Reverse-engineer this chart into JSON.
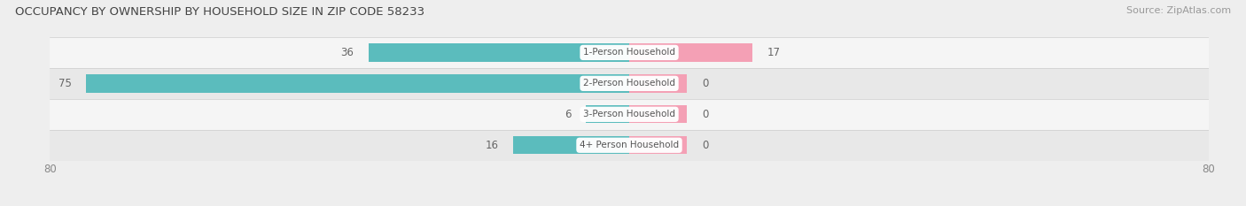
{
  "title": "OCCUPANCY BY OWNERSHIP BY HOUSEHOLD SIZE IN ZIP CODE 58233",
  "source": "Source: ZipAtlas.com",
  "categories": [
    "1-Person Household",
    "2-Person Household",
    "3-Person Household",
    "4+ Person Household"
  ],
  "owner_values": [
    36,
    75,
    6,
    16
  ],
  "renter_values": [
    17,
    0,
    0,
    0
  ],
  "renter_display": [
    17,
    8,
    8,
    8
  ],
  "owner_color": "#5bbcbd",
  "renter_color": "#f4a0b5",
  "xlim": [
    -80,
    80
  ],
  "x_ticks": [
    -80,
    80
  ],
  "bar_height": 0.58,
  "background_color": "#eeeeee",
  "row_bg_colors": [
    "#f5f5f5",
    "#e8e8e8",
    "#f5f5f5",
    "#e8e8e8"
  ],
  "label_fontsize": 8.5,
  "title_fontsize": 9.5,
  "source_fontsize": 8,
  "legend_fontsize": 8.5,
  "value_fontsize": 8.5,
  "category_fontsize": 7.5
}
